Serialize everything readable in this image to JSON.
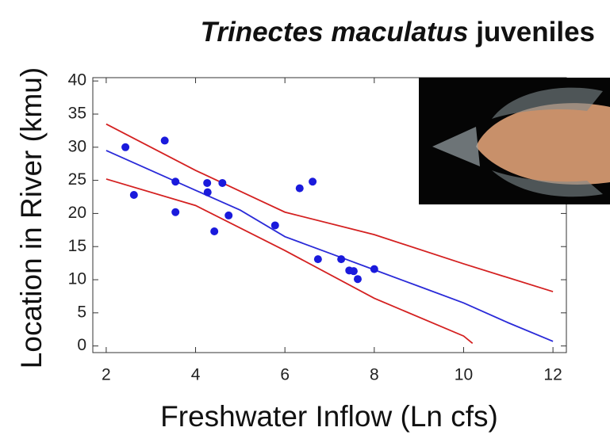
{
  "chart_data": {
    "type": "scatter",
    "title_italic": "Trinectes maculatus",
    "title_rest": "juveniles",
    "x_label": "Freshwater Inflow (Ln cfs)",
    "y_label": "Location in River (kmu)",
    "xlim": [
      1.7,
      12.3
    ],
    "ylim": [
      -1,
      40.5
    ],
    "xticks": [
      2,
      4,
      6,
      8,
      10,
      12
    ],
    "yticks": [
      0,
      5,
      10,
      15,
      20,
      25,
      30,
      35,
      40
    ],
    "points": {
      "color": "#1a1adc",
      "x": [
        2.43,
        2.62,
        3.31,
        3.55,
        3.55,
        4.26,
        4.27,
        4.6,
        4.42,
        4.74,
        5.78,
        6.33,
        6.62,
        6.74,
        7.26,
        7.44,
        7.54,
        7.63,
        8.0
      ],
      "y": [
        30,
        22.8,
        31,
        24.8,
        20.2,
        24.6,
        23.2,
        24.6,
        17.3,
        19.7,
        18.2,
        23.8,
        24.8,
        13.1,
        13.1,
        11.4,
        11.3,
        10.1,
        11.6
      ]
    },
    "lines": [
      {
        "color": "#2a2ad8",
        "x": [
          2,
          3,
          4,
          5,
          6,
          7,
          8,
          9,
          10,
          11,
          12
        ],
        "y": [
          29.5,
          26.5,
          23.5,
          20.5,
          16.5,
          14,
          11.5,
          9,
          6.5,
          3.5,
          0.7
        ]
      },
      {
        "color": "#d42020",
        "x": [
          2,
          4,
          6,
          8,
          10,
          12
        ],
        "y": [
          33.5,
          26.5,
          20.2,
          16.8,
          12.4,
          8.2
        ]
      },
      {
        "color": "#d42020",
        "x": [
          2,
          4,
          6,
          8,
          10,
          10.2
        ],
        "y": [
          25.2,
          21.2,
          14.4,
          7.2,
          1.5,
          0.4
        ]
      }
    ]
  }
}
